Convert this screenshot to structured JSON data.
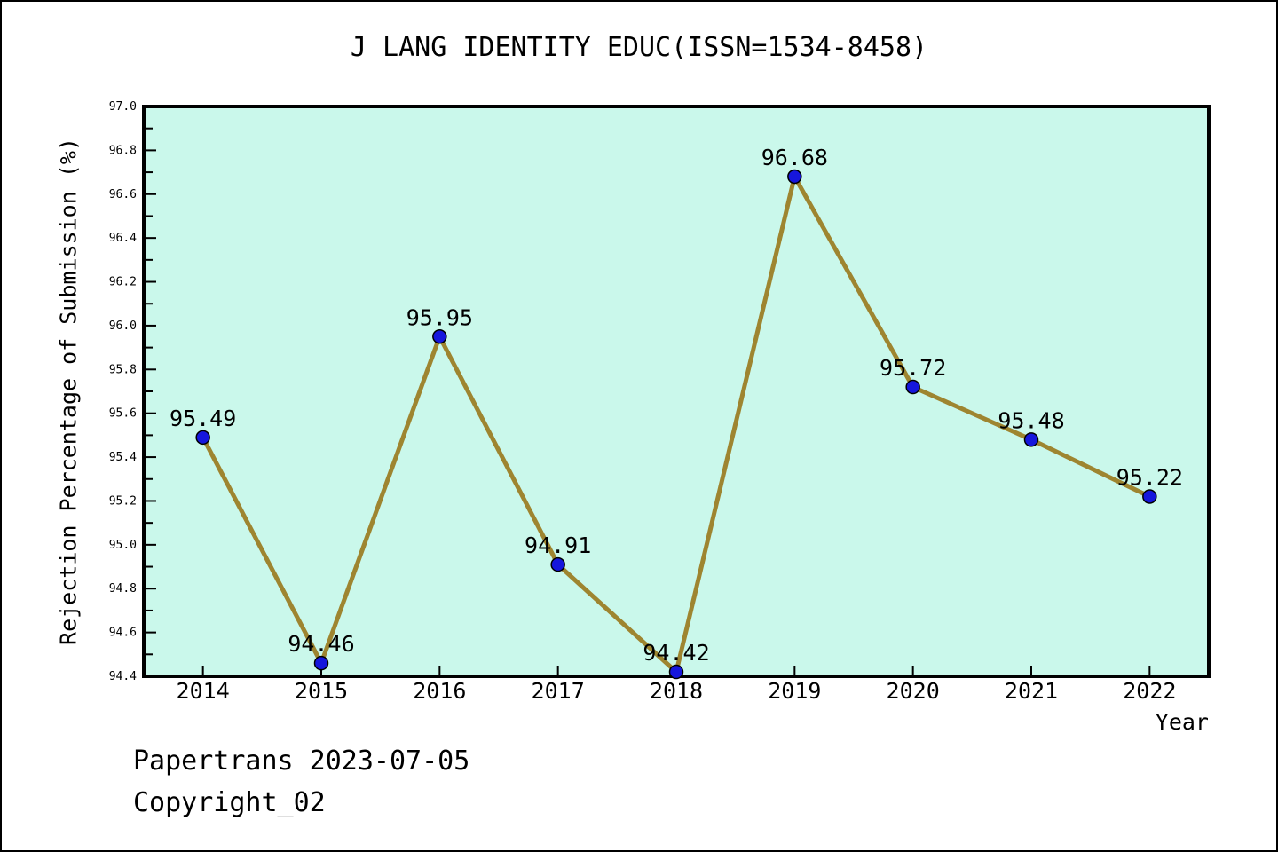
{
  "figure": {
    "title": "J LANG IDENTITY EDUC(ISSN=1534-8458)",
    "footer_line1": "Papertrans 2023-07-05",
    "footer_line2": "Copyright_02"
  },
  "chart_data": {
    "type": "line",
    "title": "J LANG IDENTITY EDUC(ISSN=1534-8458)",
    "xlabel": "Year",
    "ylabel": "Rejection Percentage of Submission (%)",
    "categories": [
      2014,
      2015,
      2016,
      2017,
      2018,
      2019,
      2020,
      2021,
      2022
    ],
    "series": [
      {
        "name": "Rejection Percentage of Submission",
        "values": [
          95.49,
          94.46,
          95.95,
          94.91,
          94.42,
          96.68,
          95.72,
          95.48,
          95.22
        ]
      }
    ],
    "point_labels": [
      "95.49",
      "94.46",
      "95.95",
      "94.91",
      "94.42",
      "96.68",
      "95.72",
      "95.48",
      "95.22"
    ],
    "xlim": [
      2013.5,
      2022.5
    ],
    "ylim": [
      94.4,
      97.0
    ],
    "y_major_step": 0.2,
    "y_minor_step": 0.1,
    "grid": false,
    "legend": "none",
    "colors": {
      "plot_bg": "#CAF8EB",
      "line": "#9E8530",
      "marker": "#1616DC",
      "marker_edge": "#000000",
      "frame": "#000000",
      "text": "#000000"
    }
  }
}
